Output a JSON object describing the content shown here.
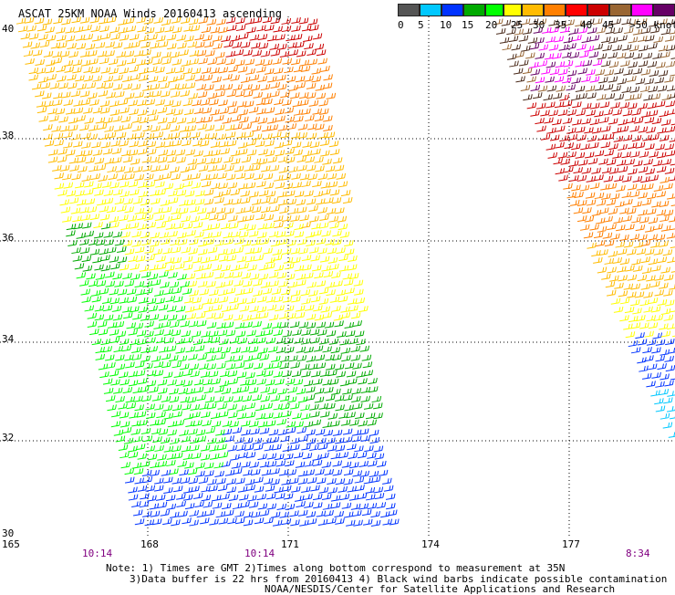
{
  "title": "ASCAT 25KM NOAA Winds 20160413 ascending",
  "legend": {
    "labels": [
      "0",
      "5",
      "10",
      "15",
      "20",
      "25",
      "30",
      "35",
      "40",
      "45",
      ">50 knots"
    ],
    "colors": [
      "#555555",
      "#00c8ff",
      "#0033ff",
      "#00aa00",
      "#00ff00",
      "#ffff00",
      "#ffbb00",
      "#ff7f00",
      "#ff0000",
      "#cc0000",
      "#996633",
      "#ff00ff",
      "#660066"
    ]
  },
  "axes": {
    "lat_labels": [
      "40",
      "38",
      "36",
      "34",
      "32",
      "30"
    ],
    "lon_labels": [
      "165",
      "168",
      "171",
      "174",
      "177"
    ]
  },
  "times": [
    "10:14",
    "10:14",
    "8:34"
  ],
  "notes": {
    "line1": "Note: 1) Times are GMT 2)Times along bottom correspond to measurement at 35N",
    "line2": "3)Data buffer is 22 hrs from 20160413 4) Black wind barbs indicate possible contamination",
    "line3": "NOAA/NESDIS/Center for Satellite Applications and Research"
  }
}
